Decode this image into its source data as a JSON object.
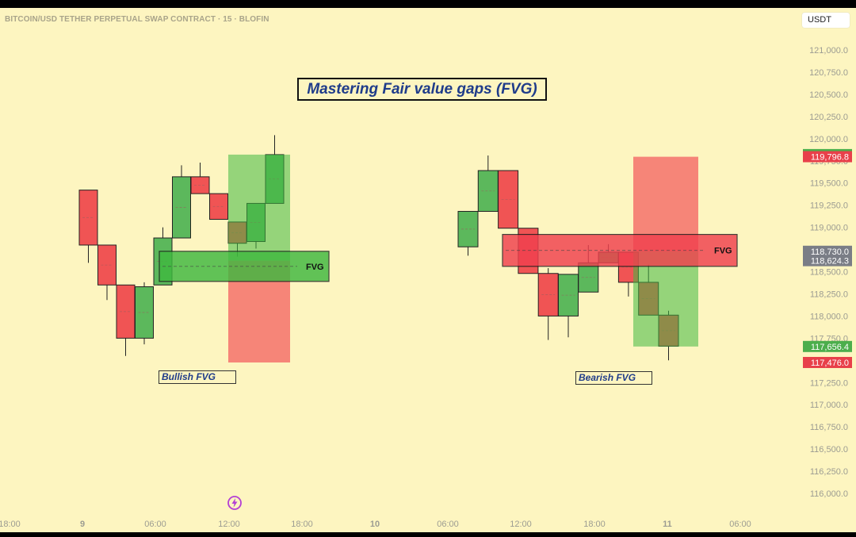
{
  "header": {
    "symbol": "BITCOIN/USD TETHER PERPETUAL SWAP CONTRACT · 15 · BLOFIN",
    "currency": "USDT"
  },
  "annotations": {
    "title": "Mastering Fair value gaps (FVG)",
    "bullish_label": "Bullish FVG",
    "bearish_label": "Bearish FVG",
    "fvg_bull": "FVG",
    "fvg_bear": "FVG"
  },
  "icons": {
    "lightning": "lightning-icon"
  },
  "colors": {
    "background": "#fdf5c0",
    "up": "#5cb85c",
    "down": "#f05454",
    "zone_green": "#3fb83f",
    "zone_red": "#f2565a",
    "tag_gray": "#7a7d86",
    "title_text": "#1f3c8a"
  },
  "chart_data": {
    "type": "candlestick",
    "y_range": [
      115850,
      121150
    ],
    "y_ticks": [
      "121,000.0",
      "120,750.0",
      "120,500.0",
      "120,250.0",
      "120,000.0",
      "119,750.0",
      "119,500.0",
      "119,250.0",
      "119,000.0",
      "118,750.0",
      "118,500.0",
      "118,250.0",
      "118,000.0",
      "117,750.0",
      "117,500.0",
      "117,250.0",
      "117,000.0",
      "116,750.0",
      "116,500.0",
      "116,250.0",
      "116,000.0"
    ],
    "x_ticks": [
      "18:00",
      "9",
      "06:00",
      "12:00",
      "18:00",
      "10",
      "06:00",
      "12:00",
      "18:00",
      "11",
      "06:00"
    ],
    "price_tags": [
      {
        "label": "119,820.3",
        "value": 119820.3,
        "color": "#4cae4c"
      },
      {
        "label": "119,796.8",
        "value": 119796.8,
        "color": "#e8404a"
      },
      {
        "label": "118,730.0",
        "value": 118730.0,
        "color": "#7a7d86"
      },
      {
        "label": "118,624.3",
        "value": 118624.3,
        "color": "#7a7d86"
      },
      {
        "label": "117,656.4",
        "value": 117656.4,
        "color": "#4cae4c"
      },
      {
        "label": "117,476.0",
        "value": 117476.0,
        "color": "#e8404a"
      }
    ],
    "groups": [
      {
        "name": "Bullish FVG",
        "candles": [
          {
            "o": 119420,
            "c": 118800,
            "h": 119420,
            "l": 118600
          },
          {
            "o": 118800,
            "c": 118350,
            "h": 118800,
            "l": 118180
          },
          {
            "o": 118350,
            "c": 117750,
            "h": 118350,
            "l": 117550
          },
          {
            "o": 117750,
            "c": 118330,
            "h": 118380,
            "l": 117680
          },
          {
            "o": 118350,
            "c": 118880,
            "h": 119000,
            "l": 118350
          },
          {
            "o": 118880,
            "c": 119570,
            "h": 119700,
            "l": 118880
          },
          {
            "o": 119570,
            "c": 119380,
            "h": 119730,
            "l": 119380
          },
          {
            "o": 119380,
            "c": 119090,
            "h": 119380,
            "l": 119090
          },
          {
            "o": 119060,
            "c": 118820,
            "h": 119060,
            "l": 118670
          },
          {
            "o": 118840,
            "c": 119270,
            "h": 119270,
            "l": 118760
          },
          {
            "o": 119270,
            "c": 119820,
            "h": 120040,
            "l": 119270
          }
        ],
        "fvg": {
          "top": 118730,
          "bottom": 118390,
          "label": "FVG"
        },
        "green_zone": {
          "top": 119820,
          "bottom": 118624
        },
        "red_zone": {
          "top": 118624,
          "bottom": 117476
        }
      },
      {
        "name": "Bearish FVG",
        "candles": [
          {
            "o": 118780,
            "c": 119180,
            "h": 119180,
            "l": 118680
          },
          {
            "o": 119180,
            "c": 119640,
            "h": 119810,
            "l": 119180
          },
          {
            "o": 119640,
            "c": 118990,
            "h": 119640,
            "l": 118990
          },
          {
            "o": 118990,
            "c": 118480,
            "h": 118990,
            "l": 118480
          },
          {
            "o": 118480,
            "c": 118000,
            "h": 118540,
            "l": 117730
          },
          {
            "o": 118000,
            "c": 118470,
            "h": 118470,
            "l": 117760
          },
          {
            "o": 118270,
            "c": 118600,
            "h": 118800,
            "l": 118270
          },
          {
            "o": 118600,
            "c": 118720,
            "h": 118810,
            "l": 118600
          },
          {
            "o": 118720,
            "c": 118380,
            "h": 118720,
            "l": 118220
          },
          {
            "o": 118380,
            "c": 118010,
            "h": 118580,
            "l": 118010
          },
          {
            "o": 118010,
            "c": 117660,
            "h": 118060,
            "l": 117500
          }
        ],
        "fvg": {
          "top": 118920,
          "bottom": 118560,
          "label": "FVG"
        },
        "red_zone": {
          "top": 119796,
          "bottom": 118730
        },
        "green_zone": {
          "top": 118730,
          "bottom": 117656
        }
      }
    ]
  }
}
